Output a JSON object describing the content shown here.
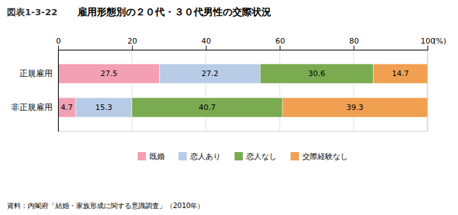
{
  "chart_data": {
    "type": "bar",
    "orientation": "horizontal",
    "stacked": true,
    "title": "雇用形態別の２０代・３０代男性の交際状況",
    "x_label": "(%)",
    "annotations": [
      "図表1-3-22",
      "資料：内閣府「結婚・家族形成に関する意識調査」（2010年）"
    ],
    "categories": [
      "正規雇用",
      "非正規雇用"
    ],
    "series": [
      {
        "name": "既婚",
        "values": [
          27.5,
          4.7
        ],
        "color": "#F4A0B4"
      },
      {
        "name": "恋人あり",
        "values": [
          27.2,
          15.3
        ],
        "color": "#B8CCE8"
      },
      {
        "name": "恋人なし",
        "values": [
          30.6,
          40.7
        ],
        "color": "#7AAB50"
      },
      {
        "name": "交際経験なし",
        "values": [
          14.7,
          39.3
        ],
        "color": "#F0A050"
      }
    ],
    "xlim": [
      0,
      100
    ],
    "xticks": [
      0,
      20,
      40,
      60,
      80,
      100
    ],
    "grid": true,
    "legend": "bottom",
    "data_labels": true
  }
}
